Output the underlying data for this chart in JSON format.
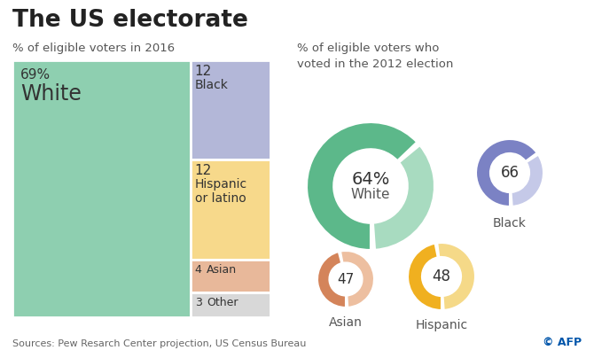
{
  "title": "The US electorate",
  "subtitle_left": "% of eligible voters in 2016",
  "subtitle_right": "% of eligible voters who\nvoted in the 2012 election",
  "source": "Sources: Pew Resarch Center projection, US Census Bureau",
  "treemap": {
    "white": {
      "pct": 69,
      "label": "White",
      "num": "69%",
      "color": "#8ecfb0"
    },
    "black": {
      "pct": 12,
      "label": "Black",
      "num": "12",
      "color": "#b3b7d8"
    },
    "hispanic": {
      "pct": 12,
      "label": "Hispanic\nor latino",
      "num": "12",
      "color": "#f7d98b"
    },
    "asian": {
      "pct": 4,
      "label": "Asian",
      "num": "4",
      "color": "#e8b89a"
    },
    "other": {
      "pct": 3,
      "label": "Other",
      "num": "3",
      "color": "#d8d8d8"
    }
  },
  "donuts": {
    "white": {
      "pct": 64,
      "label": "White",
      "color_main": "#5cb88a",
      "color_light": "#a8dbc0"
    },
    "black": {
      "pct": 66,
      "label": "Black",
      "color_main": "#7b82c4",
      "color_light": "#c5c9e8"
    },
    "asian": {
      "pct": 47,
      "label": "Asian",
      "color_main": "#d4845a",
      "color_light": "#edbfa0"
    },
    "hispanic": {
      "pct": 48,
      "label": "Hispanic",
      "color_main": "#f0b020",
      "color_light": "#f5d988"
    }
  },
  "bg_color": "#ffffff"
}
